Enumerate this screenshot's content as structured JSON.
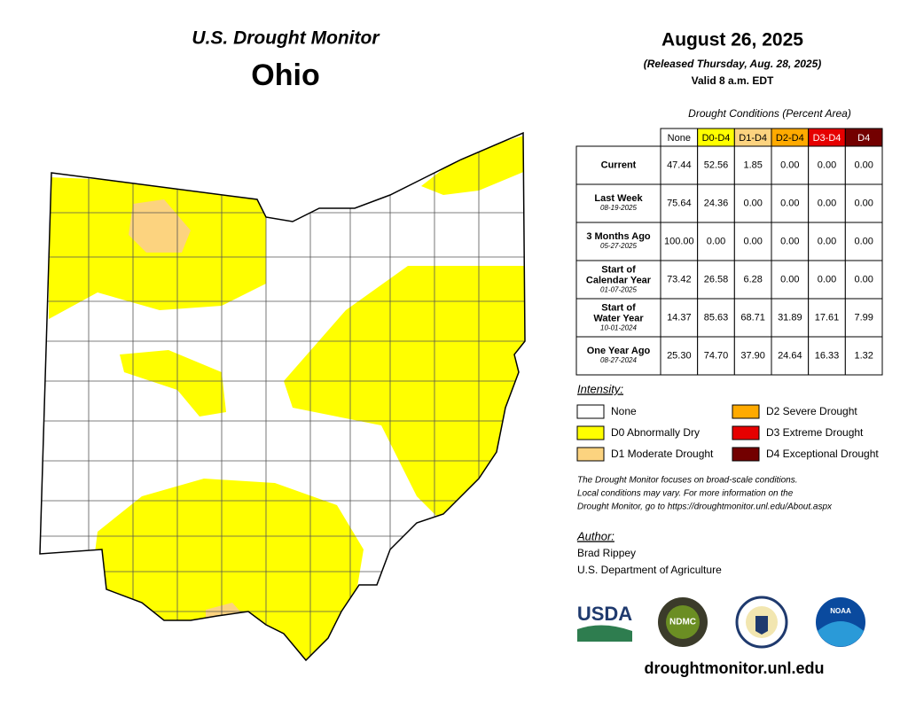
{
  "header": {
    "title": "U.S. Drought Monitor",
    "state": "Ohio"
  },
  "release": {
    "date": "August 26, 2025",
    "released": "(Released Thursday, Aug. 28, 2025)",
    "valid": "Valid 8 a.m. EDT"
  },
  "table": {
    "caption": "Drought Conditions (Percent Area)",
    "columns": [
      {
        "label": "None",
        "color": "#ffffff",
        "text": "#000000"
      },
      {
        "label": "D0-D4",
        "color": "#ffff00",
        "text": "#000000"
      },
      {
        "label": "D1-D4",
        "color": "#fcd37f",
        "text": "#000000"
      },
      {
        "label": "D2-D4",
        "color": "#ffaa00",
        "text": "#000000"
      },
      {
        "label": "D3-D4",
        "color": "#e60000",
        "text": "#ffffff"
      },
      {
        "label": "D4",
        "color": "#730000",
        "text": "#ffffff"
      }
    ],
    "rows": [
      {
        "label": [
          "Current"
        ],
        "values": [
          "47.44",
          "52.56",
          "1.85",
          "0.00",
          "0.00",
          "0.00"
        ]
      },
      {
        "label": [
          "Last Week"
        ],
        "date": "08-19-2025",
        "values": [
          "75.64",
          "24.36",
          "0.00",
          "0.00",
          "0.00",
          "0.00"
        ]
      },
      {
        "label": [
          "3 Months Ago"
        ],
        "date": "05-27-2025",
        "values": [
          "100.00",
          "0.00",
          "0.00",
          "0.00",
          "0.00",
          "0.00"
        ]
      },
      {
        "label": [
          "Start of",
          "Calendar Year"
        ],
        "date": "01-07-2025",
        "values": [
          "73.42",
          "26.58",
          "6.28",
          "0.00",
          "0.00",
          "0.00"
        ]
      },
      {
        "label": [
          "Start of",
          "Water Year"
        ],
        "date": "10-01-2024",
        "values": [
          "14.37",
          "85.63",
          "68.71",
          "31.89",
          "17.61",
          "7.99"
        ]
      },
      {
        "label": [
          "One Year Ago"
        ],
        "date": "08-27-2024",
        "values": [
          "25.30",
          "74.70",
          "37.90",
          "24.64",
          "16.33",
          "1.32"
        ]
      }
    ]
  },
  "legend": {
    "title": "Intensity:",
    "items": [
      {
        "label": "None",
        "color": "#ffffff"
      },
      {
        "label": "D0 Abnormally Dry",
        "color": "#ffff00"
      },
      {
        "label": "D1 Moderate Drought",
        "color": "#fcd37f"
      },
      {
        "label": "D2 Severe Drought",
        "color": "#ffaa00"
      },
      {
        "label": "D3 Extreme Drought",
        "color": "#e60000"
      },
      {
        "label": "D4 Exceptional Drought",
        "color": "#730000"
      }
    ]
  },
  "note": [
    "The Drought Monitor focuses on broad-scale conditions.",
    "Local conditions may vary. For more information on the",
    "Drought Monitor, go to https://droughtmonitor.unl.edu/About.aspx"
  ],
  "author": {
    "title": "Author:",
    "name": "Brad Rippey",
    "org": "U.S. Department of Agriculture"
  },
  "logos": {
    "usda": "USDA",
    "ndmc": "NDMC",
    "noaa": "NOAA"
  },
  "footer": "droughtmonitor.unl.edu"
}
